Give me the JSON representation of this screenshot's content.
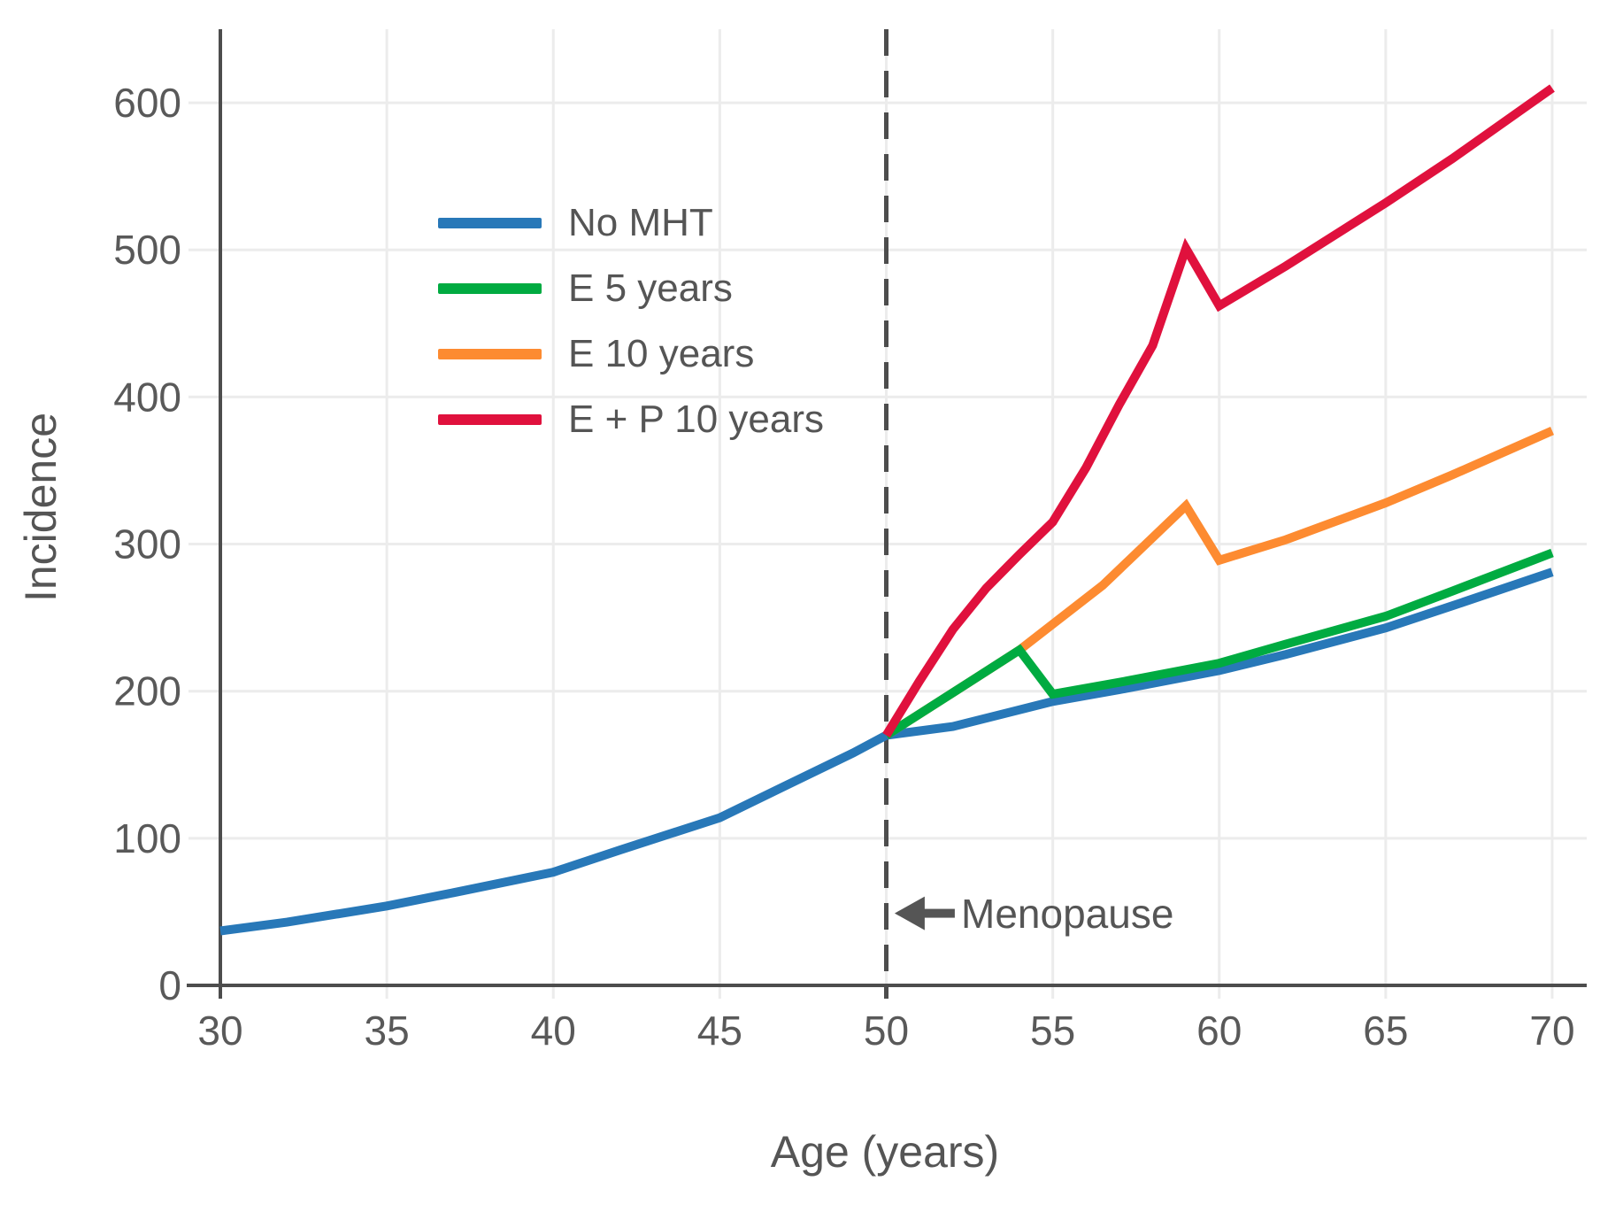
{
  "chart_data": {
    "type": "line",
    "title": "",
    "xlabel": "Age (years)",
    "ylabel": "Incidence",
    "xlim": [
      30,
      71
    ],
    "ylim": [
      0,
      650
    ],
    "xticks": [
      30,
      35,
      40,
      45,
      50,
      55,
      60,
      65,
      70
    ],
    "yticks": [
      0,
      100,
      200,
      300,
      400,
      500,
      600
    ],
    "grid": true,
    "legend_position": "upper-left-inside",
    "vline": {
      "x": 50,
      "style": "dashed"
    },
    "annotation": {
      "text": "Menopause",
      "arrow": "left",
      "arrow_tip_x": 50.25,
      "arrow_tip_y": 49,
      "text_x": 52.3,
      "text_y": 49
    },
    "colors": {
      "axis": "#4d4d4d",
      "tick_text": "#595959",
      "grid": "#ececec",
      "annotation": "#555555"
    },
    "series": [
      {
        "name": "No MHT",
        "color": "#2878b8",
        "points": [
          [
            30,
            37
          ],
          [
            32,
            43
          ],
          [
            35,
            54
          ],
          [
            37,
            63
          ],
          [
            40,
            77
          ],
          [
            42,
            92
          ],
          [
            45,
            114
          ],
          [
            47,
            136
          ],
          [
            49,
            158
          ],
          [
            50,
            170
          ],
          [
            52,
            176
          ],
          [
            55,
            193
          ],
          [
            57,
            201
          ],
          [
            60,
            214
          ],
          [
            62,
            225
          ],
          [
            65,
            243
          ],
          [
            67,
            258
          ],
          [
            70,
            281
          ]
        ]
      },
      {
        "name": "E 5 years",
        "color": "#00ab41",
        "points": [
          [
            50,
            170
          ],
          [
            52,
            199
          ],
          [
            54,
            228
          ],
          [
            55,
            198
          ],
          [
            57,
            206
          ],
          [
            60,
            219
          ],
          [
            62,
            232
          ],
          [
            65,
            251
          ],
          [
            67,
            268
          ],
          [
            70,
            294
          ]
        ]
      },
      {
        "name": "E 10 years",
        "color": "#fd8b31",
        "points": [
          [
            50,
            170
          ],
          [
            52,
            199
          ],
          [
            54,
            228
          ],
          [
            56.5,
            272
          ],
          [
            59,
            326
          ],
          [
            60,
            289
          ],
          [
            62,
            303
          ],
          [
            65,
            328
          ],
          [
            67,
            347
          ],
          [
            70,
            377
          ]
        ]
      },
      {
        "name": "E + P 10 years",
        "color": "#e0113d",
        "points": [
          [
            50,
            170
          ],
          [
            51,
            207
          ],
          [
            52,
            242
          ],
          [
            53,
            270
          ],
          [
            54,
            293
          ],
          [
            55,
            315
          ],
          [
            56,
            352
          ],
          [
            57,
            395
          ],
          [
            58,
            435
          ],
          [
            59,
            501
          ],
          [
            60,
            462
          ],
          [
            62,
            489
          ],
          [
            65,
            532
          ],
          [
            67,
            562
          ],
          [
            70,
            610
          ]
        ]
      }
    ]
  }
}
